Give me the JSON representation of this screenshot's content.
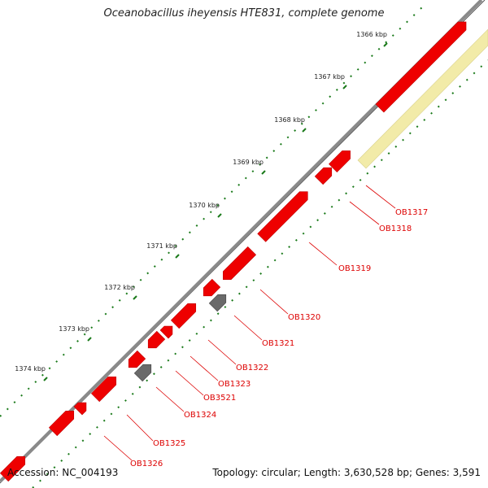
{
  "title": "Oceanobacillus iheyensis HTE831, complete genome",
  "footer": {
    "accession": "Accession: NC_004193",
    "summary": "Topology: circular; Length: 3,630,528 bp; Genes: 3,591"
  },
  "colors": {
    "backbone": "#8a8a8a",
    "gene_red": "#ee0000",
    "gene_gray": "#6a6a6a",
    "highlight": "#f2eba8",
    "tick_green": "#1a7a1a",
    "label_red": "#dd0000"
  },
  "ticks": [
    "1366 kbp",
    "1367 kbp",
    "1368 kbp",
    "1369 kbp",
    "1370 kbp",
    "1371 kbp",
    "1372 kbp",
    "1373 kbp",
    "1374 kbp"
  ],
  "genes": [
    "OB1317",
    "OB1318",
    "OB1319",
    "OB1320",
    "OB1321",
    "OB1322",
    "OB1323",
    "OB3521",
    "OB1324",
    "OB1325",
    "OB1326"
  ]
}
